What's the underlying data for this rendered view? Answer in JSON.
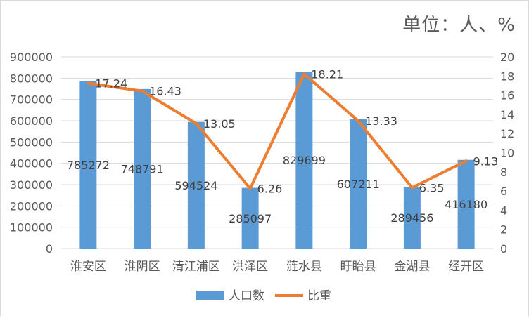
{
  "unit_label": "单位：人、%",
  "chart_data": {
    "type": "bar",
    "categories": [
      "淮安区",
      "淮阴区",
      "清江浦区",
      "洪泽区",
      "涟水县",
      "盱眙县",
      "金湖县",
      "经开区"
    ],
    "series": [
      {
        "name": "人口数",
        "type": "bar",
        "axis": "left",
        "color": "#5b9bd5",
        "values": [
          785272,
          748791,
          594524,
          285097,
          829699,
          607211,
          289456,
          416180
        ],
        "labels": [
          "785272",
          "748791",
          "594524",
          "285097",
          "829699",
          "607211",
          "289456",
          "416180"
        ]
      },
      {
        "name": "比重",
        "type": "line",
        "axis": "right",
        "color": "#ed7d31",
        "values": [
          17.24,
          16.43,
          13.05,
          6.26,
          18.21,
          13.33,
          6.35,
          9.13
        ],
        "labels": [
          "17.24",
          "16.43",
          "13.05",
          "6.26",
          "18.21",
          "13.33",
          "6.35",
          "9.13"
        ]
      }
    ],
    "y_left": {
      "lim": [
        0,
        900000
      ],
      "ticks": [
        "0",
        "100000",
        "200000",
        "300000",
        "400000",
        "500000",
        "600000",
        "700000",
        "800000",
        "900000"
      ]
    },
    "y_right": {
      "lim": [
        0,
        20
      ],
      "ticks": [
        "0",
        "2",
        "4",
        "6",
        "8",
        "10",
        "12",
        "14",
        "16",
        "18",
        "20"
      ]
    },
    "grid": true,
    "legend": "bottom"
  }
}
